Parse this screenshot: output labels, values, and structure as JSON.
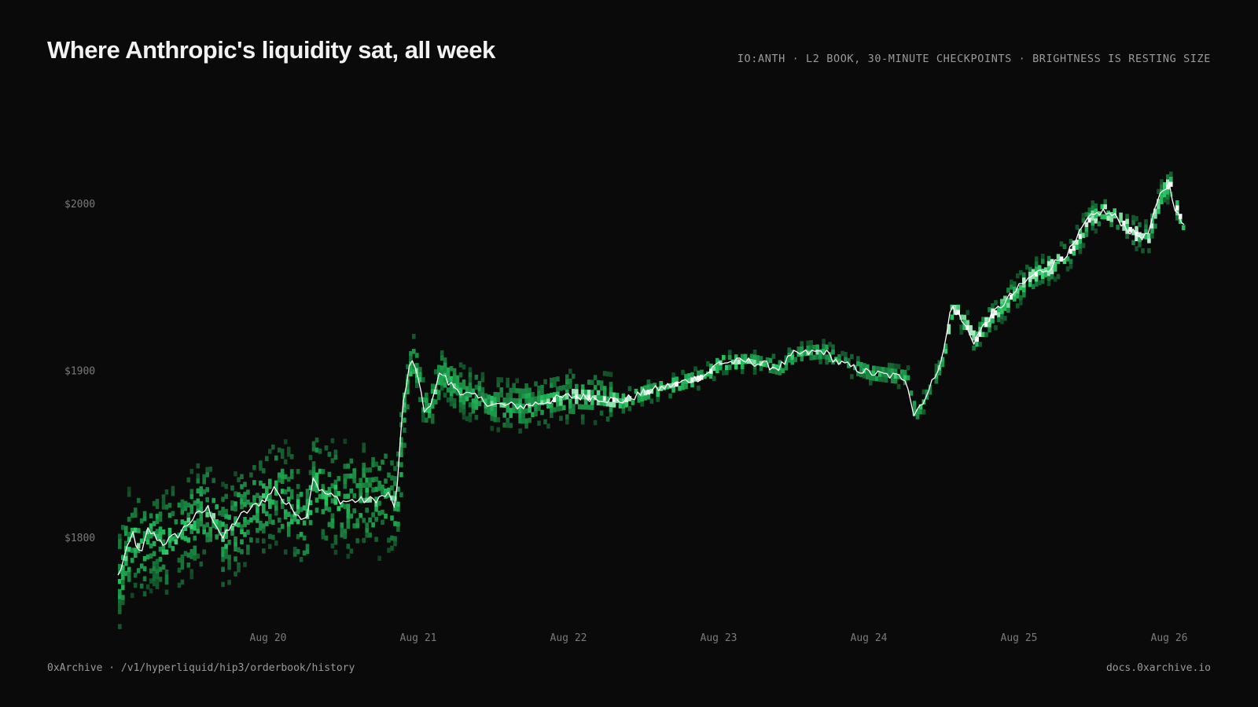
{
  "header": {
    "title": "Where Anthropic's liquidity sat, all week",
    "subtitle": "IO:ANTH · L2 BOOK, 30-MINUTE CHECKPOINTS · BRIGHTNESS IS RESTING SIZE"
  },
  "footer": {
    "source": "0xArchive · /v1/hyperliquid/hip3/orderbook/history",
    "site": "docs.0xarchive.io"
  },
  "colors": {
    "background": "#0a0a0a",
    "heat_low": "#0f3d1e",
    "heat_mid": "#22c55e",
    "heat_high": "#ffffff",
    "mid_line": "#ffffff"
  },
  "chart_data": {
    "type": "heatmap",
    "title": "Where Anthropic's liquidity sat, all week",
    "x_ticks": [
      "Aug 20",
      "Aug 21",
      "Aug 22",
      "Aug 23",
      "Aug 24",
      "Aug 25",
      "Aug 26"
    ],
    "y_ticks": [
      "$1800",
      "$1900",
      "$2000"
    ],
    "y_tick_values": [
      1800,
      1900,
      2000
    ],
    "x_range_days": [
      19.0,
      26.1
    ],
    "ylim": [
      1740,
      2050
    ],
    "grid": false,
    "legend": "none",
    "series": [
      {
        "kind": "mid_price_line",
        "points": [
          [
            19.0,
            1777
          ],
          [
            19.05,
            1790
          ],
          [
            19.1,
            1803
          ],
          [
            19.15,
            1788
          ],
          [
            19.2,
            1805
          ],
          [
            19.3,
            1797
          ],
          [
            19.4,
            1802
          ],
          [
            19.5,
            1812
          ],
          [
            19.6,
            1818
          ],
          [
            19.7,
            1800
          ],
          [
            19.8,
            1812
          ],
          [
            20.0,
            1825
          ],
          [
            20.05,
            1831
          ],
          [
            20.1,
            1822
          ],
          [
            20.2,
            1815
          ],
          [
            20.25,
            1810
          ],
          [
            20.3,
            1837
          ],
          [
            20.35,
            1828
          ],
          [
            20.5,
            1822
          ],
          [
            20.7,
            1823
          ],
          [
            20.8,
            1826
          ],
          [
            20.85,
            1818
          ],
          [
            20.9,
            1882
          ],
          [
            20.95,
            1908
          ],
          [
            21.0,
            1895
          ],
          [
            21.05,
            1873
          ],
          [
            21.15,
            1900
          ],
          [
            21.2,
            1893
          ],
          [
            21.3,
            1887
          ],
          [
            21.5,
            1880
          ],
          [
            21.7,
            1879
          ],
          [
            22.0,
            1885
          ],
          [
            22.2,
            1884
          ],
          [
            22.35,
            1882
          ],
          [
            22.5,
            1887
          ],
          [
            22.7,
            1892
          ],
          [
            22.9,
            1897
          ],
          [
            23.0,
            1905
          ],
          [
            23.2,
            1906
          ],
          [
            23.4,
            1902
          ],
          [
            23.5,
            1910
          ],
          [
            23.7,
            1912
          ],
          [
            23.8,
            1905
          ],
          [
            24.0,
            1899
          ],
          [
            24.25,
            1896
          ],
          [
            24.3,
            1874
          ],
          [
            24.4,
            1888
          ],
          [
            24.5,
            1912
          ],
          [
            24.55,
            1940
          ],
          [
            24.6,
            1933
          ],
          [
            24.7,
            1918
          ],
          [
            24.8,
            1932
          ],
          [
            25.0,
            1950
          ],
          [
            25.1,
            1958
          ],
          [
            25.2,
            1962
          ],
          [
            25.35,
            1973
          ],
          [
            25.45,
            1990
          ],
          [
            25.55,
            1996
          ],
          [
            25.65,
            1992
          ],
          [
            25.75,
            1983
          ],
          [
            25.85,
            1980
          ],
          [
            25.95,
            2008
          ],
          [
            26.0,
            2012
          ],
          [
            26.05,
            1995
          ],
          [
            26.1,
            1986
          ]
        ]
      }
    ]
  }
}
